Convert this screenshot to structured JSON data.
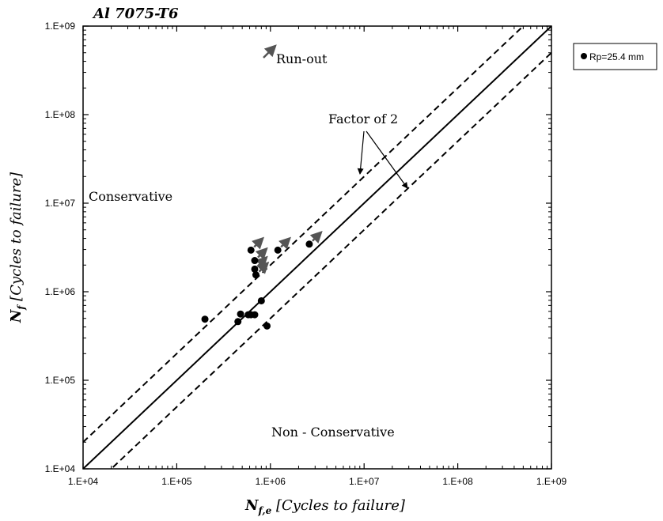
{
  "chart_data": {
    "type": "scatter",
    "title": "Al 7075-T6",
    "xlabel_main": "N",
    "xlabel_sub": "f,e",
    "xlabel_rest": " [Cycles to failure]",
    "ylabel_main": "N",
    "ylabel_sub": "f",
    "ylabel_rest": " [Cycles to failure]",
    "x_scale": "log",
    "y_scale": "log",
    "xlim": [
      10000,
      1000000000
    ],
    "ylim": [
      10000,
      1000000000
    ],
    "grid": false,
    "x_ticks": [
      "1.E+04",
      "1.E+05",
      "1.E+06",
      "1.E+07",
      "1.E+08",
      "1.E+09"
    ],
    "y_ticks": [
      "1.E+04",
      "1.E+05",
      "1.E+06",
      "1.E+07",
      "1.E+08",
      "1.E+09"
    ],
    "legend": {
      "position": "right",
      "entries": [
        {
          "label": "Rp=25.4 mm",
          "marker": "circle",
          "color": "#000000"
        }
      ]
    },
    "series": [
      {
        "name": "Rp=25.4 mm",
        "points": [
          {
            "x": 200000,
            "y": 490000
          },
          {
            "x": 450000,
            "y": 460000
          },
          {
            "x": 480000,
            "y": 560000
          },
          {
            "x": 580000,
            "y": 550000
          },
          {
            "x": 620000,
            "y": 550000
          },
          {
            "x": 680000,
            "y": 550000
          },
          {
            "x": 800000,
            "y": 790000
          },
          {
            "x": 920000,
            "y": 410000
          },
          {
            "x": 620000,
            "y": 2950000
          },
          {
            "x": 680000,
            "y": 2250000
          },
          {
            "x": 680000,
            "y": 1800000
          },
          {
            "x": 700000,
            "y": 1550000
          },
          {
            "x": 1200000,
            "y": 2950000
          },
          {
            "x": 2600000,
            "y": 3450000
          }
        ]
      }
    ],
    "runouts": [
      {
        "x": 620000,
        "y": 2950000
      },
      {
        "x": 680000,
        "y": 2250000
      },
      {
        "x": 680000,
        "y": 1800000
      },
      {
        "x": 700000,
        "y": 1550000
      },
      {
        "x": 1200000,
        "y": 2950000
      },
      {
        "x": 2600000,
        "y": 3450000
      }
    ],
    "lines": [
      {
        "name": "equal",
        "style": "solid",
        "factor": 1
      },
      {
        "name": "upper",
        "style": "dashed",
        "factor": 2
      },
      {
        "name": "lower",
        "style": "dashed",
        "factor": 0.5
      }
    ],
    "annotations": {
      "runout_label": "Run-out",
      "factor_label": "Factor of 2",
      "conservative": "Conservative",
      "non_conservative": "Non - Conservative"
    }
  }
}
